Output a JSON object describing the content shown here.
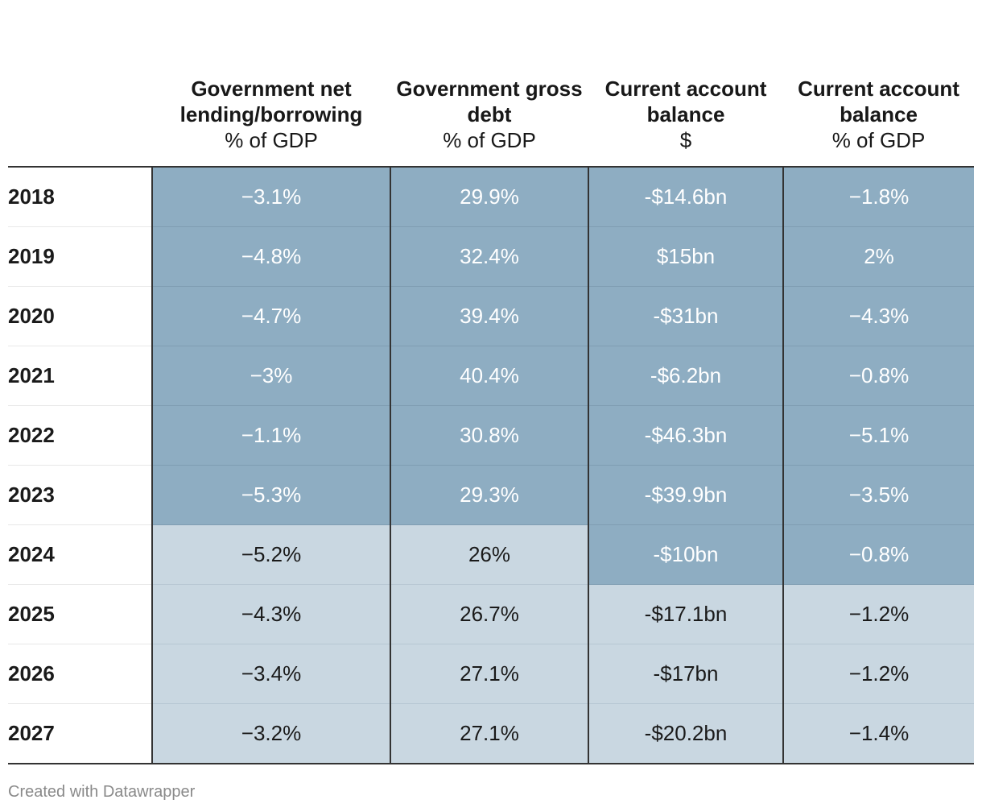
{
  "chart_data": {
    "type": "table",
    "columns": [
      {
        "title": "Government net lending/borrowing",
        "unit": "% of GDP"
      },
      {
        "title": "Government gross debt",
        "unit": "% of GDP"
      },
      {
        "title": "Current account balance",
        "unit": "$"
      },
      {
        "title": "Current account balance",
        "unit": "% of GDP"
      }
    ],
    "rows": [
      {
        "year": "2018",
        "cells": [
          "−3.1%",
          "29.9%",
          "-$14.6bn",
          "−1.8%"
        ],
        "shade": [
          "dark",
          "dark",
          "dark",
          "dark"
        ]
      },
      {
        "year": "2019",
        "cells": [
          "−4.8%",
          "32.4%",
          "$15bn",
          "2%"
        ],
        "shade": [
          "dark",
          "dark",
          "dark",
          "dark"
        ]
      },
      {
        "year": "2020",
        "cells": [
          "−4.7%",
          "39.4%",
          "-$31bn",
          "−4.3%"
        ],
        "shade": [
          "dark",
          "dark",
          "dark",
          "dark"
        ]
      },
      {
        "year": "2021",
        "cells": [
          "−3%",
          "40.4%",
          "-$6.2bn",
          "−0.8%"
        ],
        "shade": [
          "dark",
          "dark",
          "dark",
          "dark"
        ]
      },
      {
        "year": "2022",
        "cells": [
          "−1.1%",
          "30.8%",
          "-$46.3bn",
          "−5.1%"
        ],
        "shade": [
          "dark",
          "dark",
          "dark",
          "dark"
        ]
      },
      {
        "year": "2023",
        "cells": [
          "−5.3%",
          "29.3%",
          "-$39.9bn",
          "−3.5%"
        ],
        "shade": [
          "dark",
          "dark",
          "dark",
          "dark"
        ]
      },
      {
        "year": "2024",
        "cells": [
          "−5.2%",
          "26%",
          "-$10bn",
          "−0.8%"
        ],
        "shade": [
          "light",
          "light",
          "dark",
          "dark"
        ]
      },
      {
        "year": "2025",
        "cells": [
          "−4.3%",
          "26.7%",
          "-$17.1bn",
          "−1.2%"
        ],
        "shade": [
          "light",
          "light",
          "light",
          "light"
        ]
      },
      {
        "year": "2026",
        "cells": [
          "−3.4%",
          "27.1%",
          "-$17bn",
          "−1.2%"
        ],
        "shade": [
          "light",
          "light",
          "light",
          "light"
        ]
      },
      {
        "year": "2027",
        "cells": [
          "−3.2%",
          "27.1%",
          "-$20.2bn",
          "−1.4%"
        ],
        "shade": [
          "light",
          "light",
          "light",
          "light"
        ]
      }
    ]
  },
  "colors": {
    "actual_fill": "#8eadc2",
    "forecast_fill": "#c9d7e1"
  },
  "footer": {
    "credit": "Created with Datawrapper"
  }
}
